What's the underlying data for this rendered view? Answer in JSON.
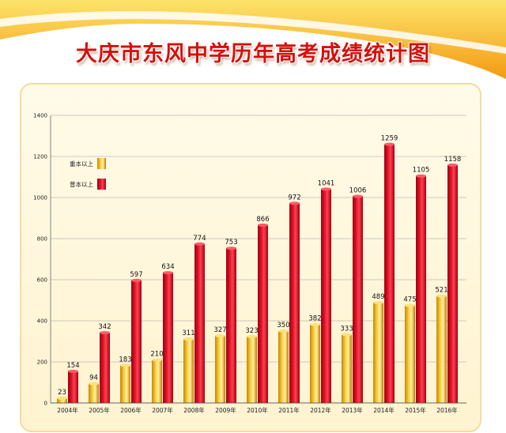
{
  "title": "大庆市东风中学历年高考成绩统计图",
  "colors": {
    "primary_series": "#f2b418",
    "secondary_series": "#d90a1e",
    "panel": "#fff8e1",
    "banner": "#f8b01a",
    "title": "#d4100c"
  },
  "chart_data": {
    "type": "bar",
    "categories": [
      "2004年",
      "2005年",
      "2006年",
      "2007年",
      "2008年",
      "2009年",
      "2010年",
      "2011年",
      "2012年",
      "2013年",
      "2014年",
      "2015年",
      "2016年"
    ],
    "series": [
      {
        "name": "重本以上",
        "values": [
          23,
          94,
          183,
          210,
          311,
          327,
          323,
          350,
          382,
          333,
          489,
          475,
          521
        ]
      },
      {
        "name": "普本以上",
        "values": [
          154,
          342,
          597,
          634,
          774,
          753,
          866,
          972,
          1041,
          1006,
          1259,
          1105,
          1158
        ]
      }
    ],
    "ylim": [
      0,
      1400
    ],
    "yticks": [
      0,
      200,
      400,
      600,
      800,
      1000,
      1200,
      1400
    ],
    "grid": true,
    "legend_position": "top-left"
  }
}
